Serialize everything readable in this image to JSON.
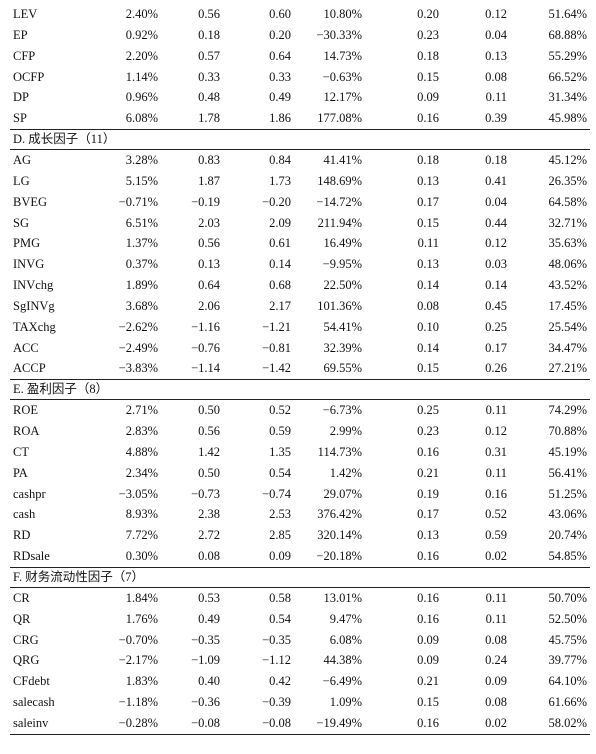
{
  "sections": [
    {
      "title": "",
      "rows": [
        [
          "LEV",
          "2.40%",
          "0.56",
          "0.60",
          "10.80%",
          "0.20",
          "0.12",
          "51.64%"
        ],
        [
          "EP",
          "0.92%",
          "0.18",
          "0.20",
          "−30.33%",
          "0.23",
          "0.04",
          "68.88%"
        ],
        [
          "CFP",
          "2.20%",
          "0.57",
          "0.64",
          "14.73%",
          "0.18",
          "0.13",
          "55.29%"
        ],
        [
          "OCFP",
          "1.14%",
          "0.33",
          "0.33",
          "−0.63%",
          "0.15",
          "0.08",
          "66.52%"
        ],
        [
          "DP",
          "0.96%",
          "0.48",
          "0.49",
          "12.17%",
          "0.09",
          "0.11",
          "31.34%"
        ],
        [
          "SP",
          "6.08%",
          "1.78",
          "1.86",
          "177.08%",
          "0.16",
          "0.39",
          "45.98%"
        ]
      ]
    },
    {
      "title": "D. 成长因子（11）",
      "rows": [
        [
          "AG",
          "3.28%",
          "0.83",
          "0.84",
          "41.41%",
          "0.18",
          "0.18",
          "45.12%"
        ],
        [
          "LG",
          "5.15%",
          "1.87",
          "1.73",
          "148.69%",
          "0.13",
          "0.41",
          "26.35%"
        ],
        [
          "BVEG",
          "−0.71%",
          "−0.19",
          "−0.20",
          "−14.72%",
          "0.17",
          "0.04",
          "64.58%"
        ],
        [
          "SG",
          "6.51%",
          "2.03",
          "2.09",
          "211.94%",
          "0.15",
          "0.44",
          "32.71%"
        ],
        [
          "PMG",
          "1.37%",
          "0.56",
          "0.61",
          "16.49%",
          "0.11",
          "0.12",
          "35.63%"
        ],
        [
          "INVG",
          "0.37%",
          "0.13",
          "0.14",
          "−9.95%",
          "0.13",
          "0.03",
          "48.06%"
        ],
        [
          "INVchg",
          "1.89%",
          "0.64",
          "0.68",
          "22.50%",
          "0.14",
          "0.14",
          "43.52%"
        ],
        [
          "SgINVg",
          "3.68%",
          "2.06",
          "2.17",
          "101.36%",
          "0.08",
          "0.45",
          "17.45%"
        ],
        [
          "TAXchg",
          "−2.62%",
          "−1.16",
          "−1.21",
          "54.41%",
          "0.10",
          "0.25",
          "25.54%"
        ],
        [
          "ACC",
          "−2.49%",
          "−0.76",
          "−0.81",
          "32.39%",
          "0.14",
          "0.17",
          "34.47%"
        ],
        [
          "ACCP",
          "−3.83%",
          "−1.14",
          "−1.42",
          "69.55%",
          "0.15",
          "0.26",
          "27.21%"
        ]
      ]
    },
    {
      "title": "E. 盈利因子（8）",
      "rows": [
        [
          "ROE",
          "2.71%",
          "0.50",
          "0.52",
          "−6.73%",
          "0.25",
          "0.11",
          "74.29%"
        ],
        [
          "ROA",
          "2.83%",
          "0.56",
          "0.59",
          "2.99%",
          "0.23",
          "0.12",
          "70.88%"
        ],
        [
          "CT",
          "4.88%",
          "1.42",
          "1.35",
          "114.73%",
          "0.16",
          "0.31",
          "45.19%"
        ],
        [
          "PA",
          "2.34%",
          "0.50",
          "0.54",
          "1.42%",
          "0.21",
          "0.11",
          "56.41%"
        ],
        [
          "cashpr",
          "−3.05%",
          "−0.73",
          "−0.74",
          "29.07%",
          "0.19",
          "0.16",
          "51.25%"
        ],
        [
          "cash",
          "8.93%",
          "2.38",
          "2.53",
          "376.42%",
          "0.17",
          "0.52",
          "43.06%"
        ],
        [
          "RD",
          "7.72%",
          "2.72",
          "2.85",
          "320.14%",
          "0.13",
          "0.59",
          "20.74%"
        ],
        [
          "RDsale",
          "0.30%",
          "0.08",
          "0.09",
          "−20.18%",
          "0.16",
          "0.02",
          "54.85%"
        ]
      ]
    },
    {
      "title": "F. 财务流动性因子（7）",
      "rows": [
        [
          "CR",
          "1.84%",
          "0.53",
          "0.58",
          "13.01%",
          "0.16",
          "0.11",
          "50.70%"
        ],
        [
          "QR",
          "1.76%",
          "0.49",
          "0.54",
          "9.47%",
          "0.16",
          "0.11",
          "52.50%"
        ],
        [
          "CRG",
          "−0.70%",
          "−0.35",
          "−0.35",
          "6.08%",
          "0.09",
          "0.08",
          "45.75%"
        ],
        [
          "QRG",
          "−2.17%",
          "−1.09",
          "−1.12",
          "44.38%",
          "0.09",
          "0.24",
          "39.77%"
        ],
        [
          "CFdebt",
          "1.83%",
          "0.40",
          "0.42",
          "−6.49%",
          "0.21",
          "0.09",
          "64.10%"
        ],
        [
          "salecash",
          "−1.18%",
          "−0.36",
          "−0.39",
          "1.09%",
          "0.15",
          "0.08",
          "61.66%"
        ],
        [
          "saleinv",
          "−0.28%",
          "−0.08",
          "−0.08",
          "−19.49%",
          "0.16",
          "0.02",
          "58.02%"
        ]
      ]
    }
  ]
}
